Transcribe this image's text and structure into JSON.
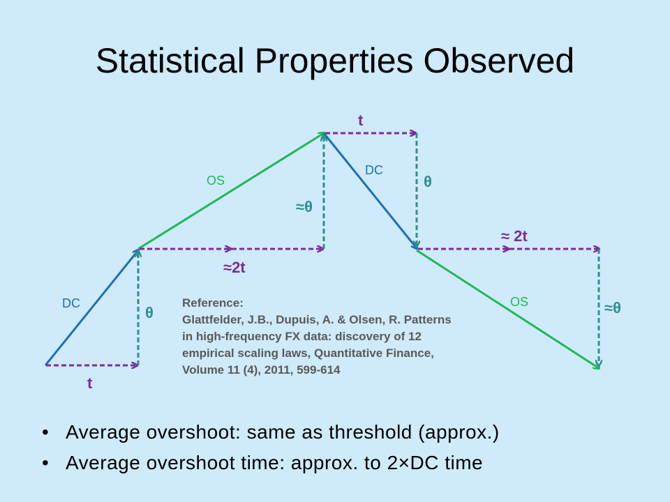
{
  "title": "Statistical Properties Observed",
  "diagram": {
    "labels": {
      "dc_left": "DC",
      "t_bottom": "t",
      "theta_left": "θ",
      "os_left": "OS",
      "approx_2t_left": "≈2t",
      "approx_theta_mid": "≈θ",
      "t_top": "t",
      "dc_right": "DC",
      "theta_right": "θ",
      "approx_2t_right": "≈ 2t",
      "os_right": "OS",
      "approx_theta_right": "≈θ"
    },
    "colors": {
      "dc": "#1a6fba",
      "os": "#1db954",
      "measure": "#7a2d9c",
      "theta_line": "#2f8f8a",
      "label_purple": "#7a2d9c",
      "label_teal": "#2f8f8a",
      "label_dc": "#1a6fba"
    }
  },
  "reference": {
    "lines": [
      "Reference:",
      "Glattfelder, J.B., Dupuis, A. & Olsen, R. Patterns",
      "in high-frequency FX data: discovery of 12",
      "empirical scaling laws, Quantitative Finance,",
      "Volume 11 (4), 2011, 599-614"
    ]
  },
  "bullets": [
    "Average overshoot: same as threshold (approx.)",
    "Average overshoot time: approx. to 2×DC time"
  ]
}
